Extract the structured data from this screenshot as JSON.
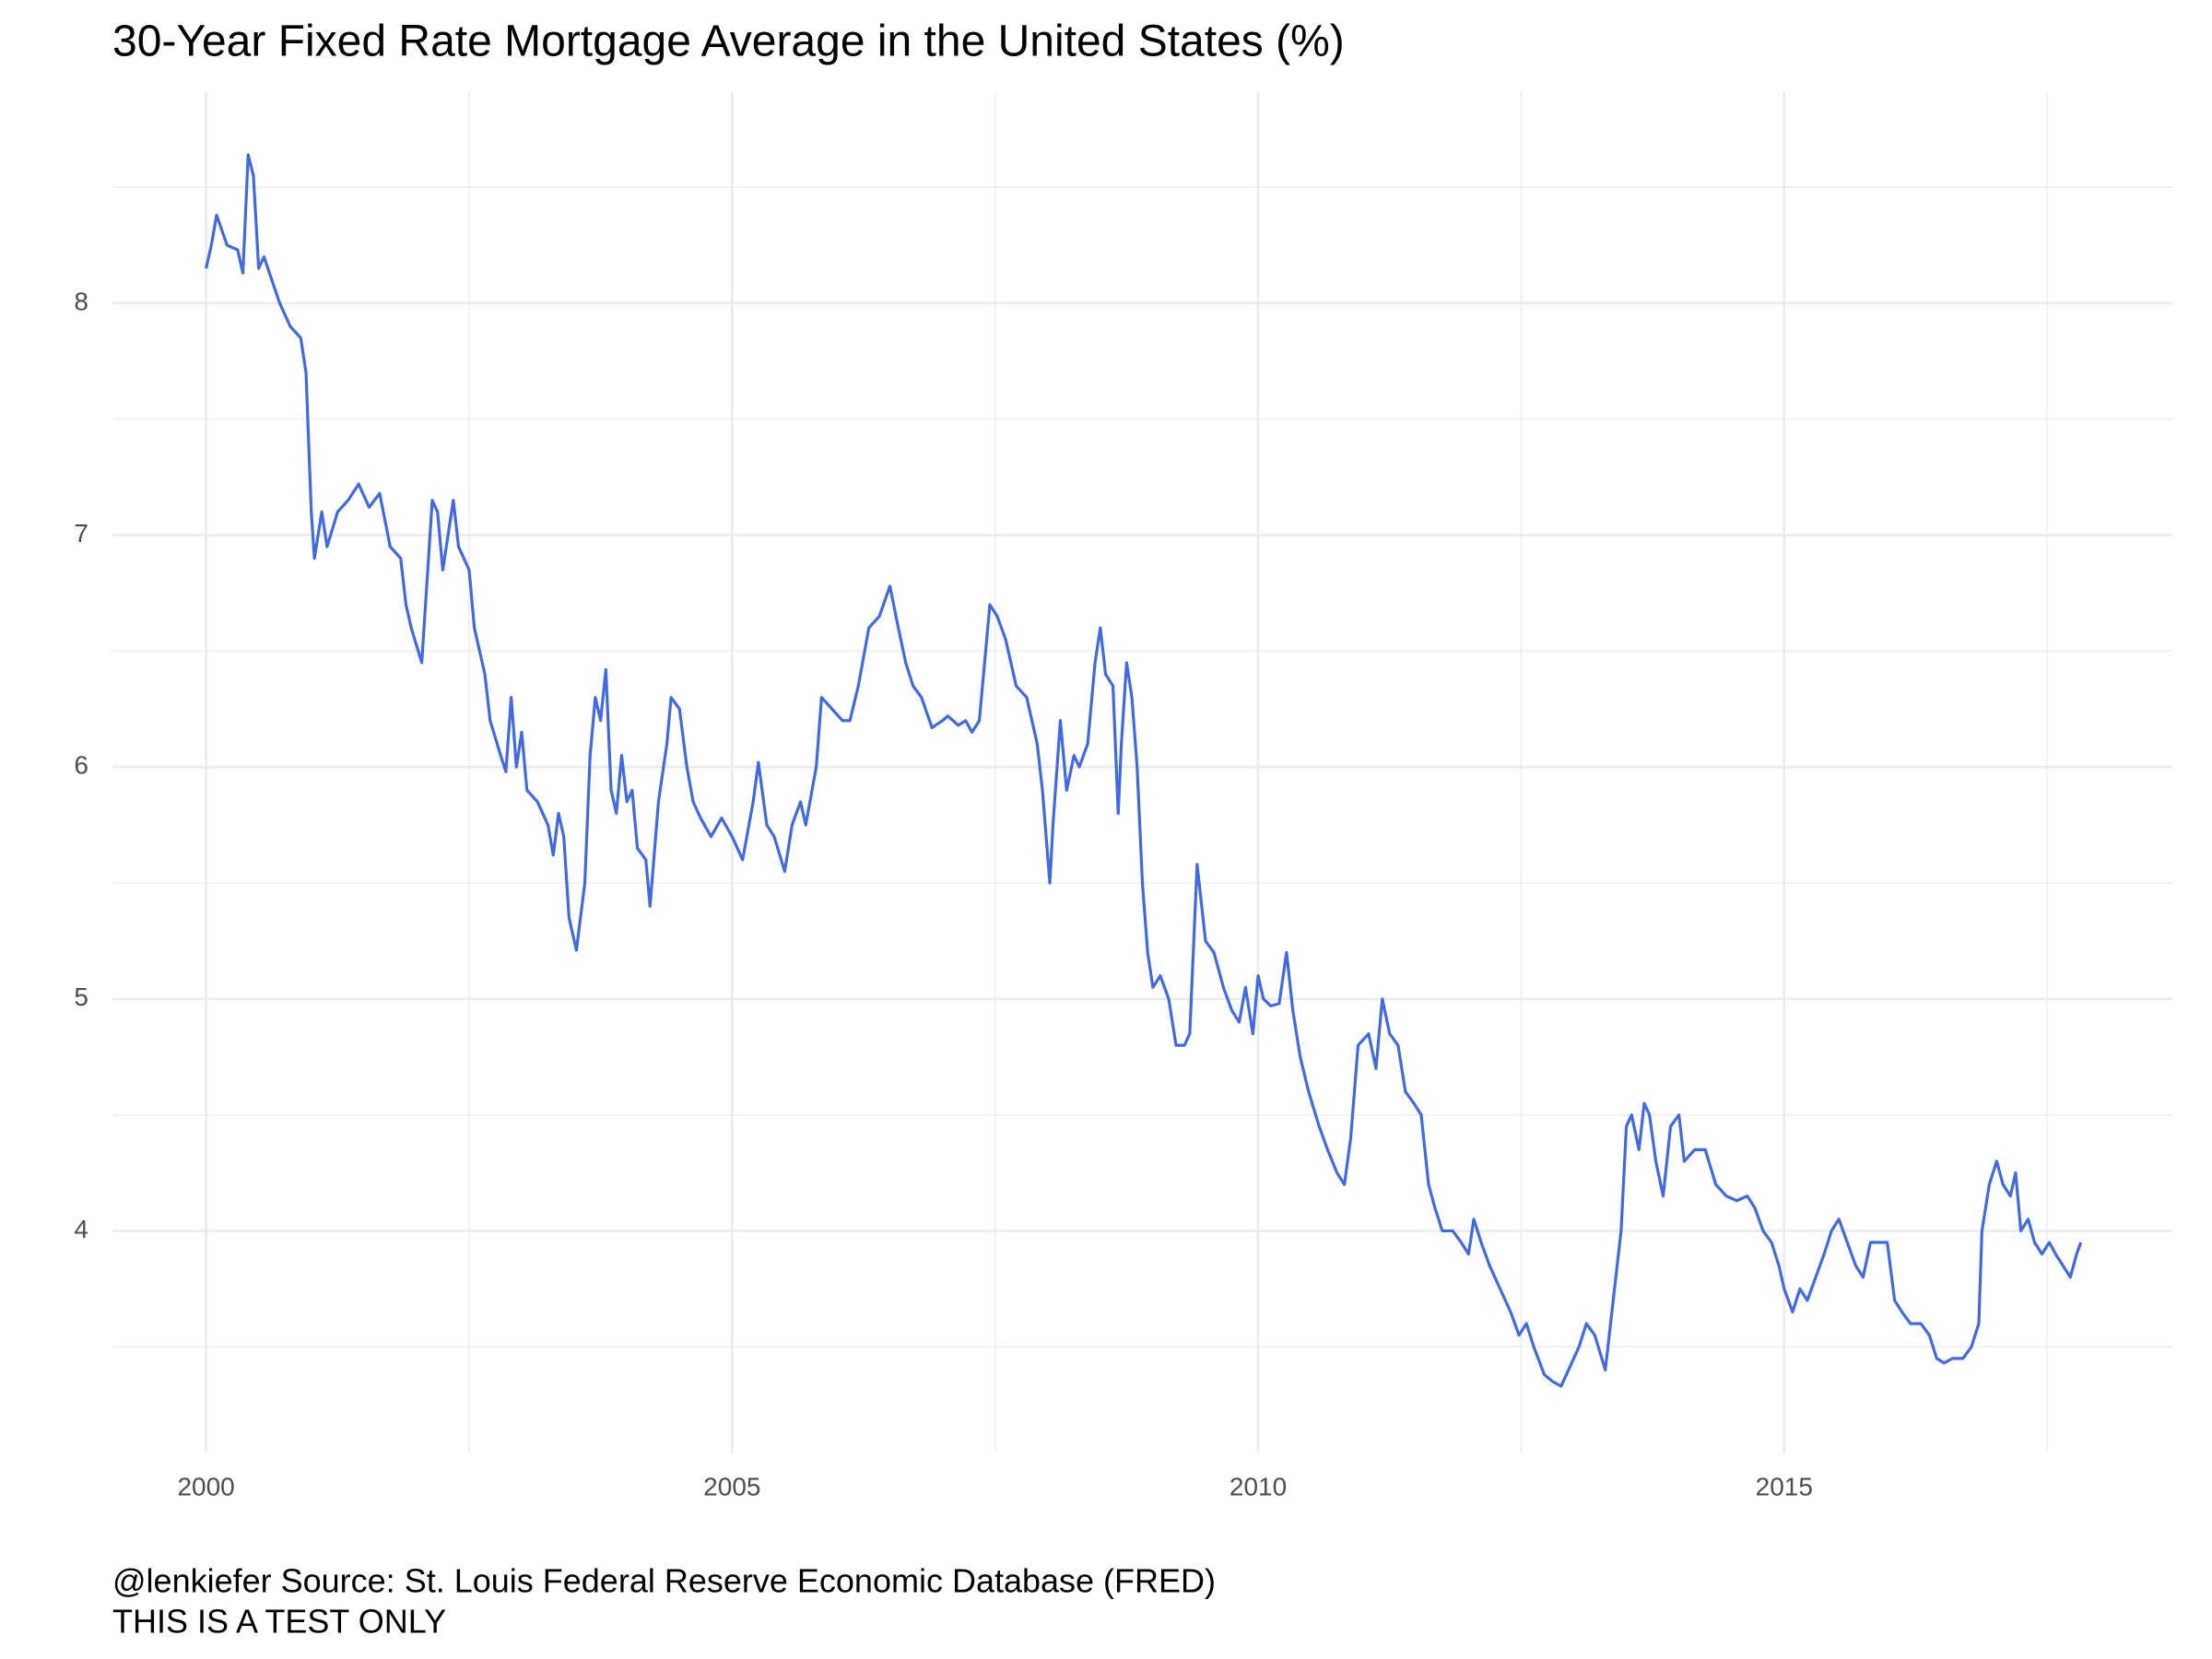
{
  "chart_data": {
    "type": "line",
    "title": "30-Year Fixed Rate Mortgage Average in the United States (%)",
    "caption": [
      "@lenkiefer Source: St. Louis Federal Reserve Economic Database (FRED)",
      "THIS IS A TEST ONLY"
    ],
    "color": "#4169e1",
    "grid": true,
    "xlim": [
      1999.11,
      2018.69
    ],
    "xticks": [
      2000,
      2005,
      2010,
      2015
    ],
    "x_minor_ticks": [
      2002.5,
      2007.5,
      2012.5,
      2017.5
    ],
    "ylim": [
      3.04,
      8.91
    ],
    "yticks": [
      4,
      5,
      6,
      7,
      8
    ],
    "y_minor_ticks": [
      3.5,
      4.5,
      5.5,
      6.5,
      7.5,
      8.5
    ],
    "x": [
      2000.0,
      2000.05,
      2000.1,
      2000.2,
      2000.3,
      2000.35,
      2000.4,
      2000.45,
      2000.5,
      2000.55,
      2000.7,
      2000.8,
      2000.9,
      2000.95,
      2001.0,
      2001.03,
      2001.1,
      2001.15,
      2001.25,
      2001.35,
      2001.45,
      2001.55,
      2001.65,
      2001.75,
      2001.85,
      2001.9,
      2001.95,
      2002.05,
      2002.1,
      2002.15,
      2002.2,
      2002.25,
      2002.3,
      2002.35,
      2002.4,
      2002.5,
      2002.55,
      2002.65,
      2002.7,
      2002.8,
      2002.85,
      2002.9,
      2002.95,
      2003.0,
      2003.05,
      2003.15,
      2003.25,
      2003.3,
      2003.35,
      2003.4,
      2003.45,
      2003.52,
      2003.6,
      2003.65,
      2003.7,
      2003.75,
      2003.8,
      2003.85,
      2003.9,
      2003.95,
      2004.0,
      2004.05,
      2004.1,
      2004.18,
      2004.22,
      2004.3,
      2004.38,
      2004.42,
      2004.5,
      2004.57,
      2004.63,
      2004.7,
      2004.8,
      2004.9,
      2005.0,
      2005.1,
      2005.2,
      2005.25,
      2005.33,
      2005.4,
      2005.5,
      2005.57,
      2005.65,
      2005.7,
      2005.8,
      2005.85,
      2005.95,
      2006.05,
      2006.12,
      2006.2,
      2006.3,
      2006.4,
      2006.5,
      2006.58,
      2006.65,
      2006.72,
      2006.8,
      2006.9,
      2007.0,
      2007.05,
      2007.15,
      2007.22,
      2007.28,
      2007.35,
      2007.45,
      2007.52,
      2007.6,
      2007.7,
      2007.8,
      2007.85,
      2007.9,
      2007.95,
      2008.02,
      2008.05,
      2008.12,
      2008.18,
      2008.25,
      2008.3,
      2008.38,
      2008.45,
      2008.5,
      2008.55,
      2008.62,
      2008.67,
      2008.7,
      2008.75,
      2008.8,
      2008.85,
      2008.9,
      2008.95,
      2009.0,
      2009.07,
      2009.15,
      2009.22,
      2009.3,
      2009.35,
      2009.42,
      2009.5,
      2009.58,
      2009.67,
      2009.75,
      2009.82,
      2009.88,
      2009.95,
      2010.0,
      2010.05,
      2010.12,
      2010.2,
      2010.27,
      2010.33,
      2010.4,
      2010.48,
      2010.58,
      2010.66,
      2010.75,
      2010.82,
      2010.88,
      2010.95,
      2011.05,
      2011.12,
      2011.18,
      2011.25,
      2011.33,
      2011.4,
      2011.48,
      2011.55,
      2011.62,
      2011.68,
      2011.75,
      2011.85,
      2011.93,
      2012.0,
      2012.05,
      2012.12,
      2012.2,
      2012.3,
      2012.4,
      2012.48,
      2012.55,
      2012.62,
      2012.72,
      2012.8,
      2012.88,
      2012.95,
      2013.05,
      2013.12,
      2013.2,
      2013.3,
      2013.35,
      2013.45,
      2013.5,
      2013.55,
      2013.62,
      2013.67,
      2013.72,
      2013.78,
      2013.85,
      2013.92,
      2014.0,
      2014.05,
      2014.15,
      2014.25,
      2014.35,
      2014.45,
      2014.55,
      2014.65,
      2014.72,
      2014.8,
      2014.88,
      2014.95,
      2015.0,
      2015.08,
      2015.15,
      2015.22,
      2015.3,
      2015.38,
      2015.45,
      2015.52,
      2015.6,
      2015.68,
      2015.75,
      2015.82,
      2015.9,
      2015.98,
      2016.05,
      2016.12,
      2016.2,
      2016.3,
      2016.38,
      2016.45,
      2016.52,
      2016.6,
      2016.7,
      2016.78,
      2016.85,
      2016.88,
      2016.95,
      2017.02,
      2017.08,
      2017.15,
      2017.2,
      2017.25,
      2017.32,
      2017.38,
      2017.45,
      2017.52,
      2017.58,
      2017.65,
      2017.72,
      2017.78,
      2017.82
    ],
    "values": [
      8.15,
      8.25,
      8.38,
      8.25,
      8.23,
      8.13,
      8.64,
      8.55,
      8.15,
      8.2,
      8.0,
      7.9,
      7.85,
      7.7,
      7.1,
      6.9,
      7.1,
      6.95,
      7.1,
      7.15,
      7.22,
      7.12,
      7.18,
      6.95,
      6.9,
      6.7,
      6.6,
      6.45,
      6.8,
      7.15,
      7.1,
      6.85,
      7.0,
      7.15,
      6.95,
      6.85,
      6.6,
      6.4,
      6.2,
      6.05,
      5.98,
      6.3,
      6.0,
      6.15,
      5.9,
      5.85,
      5.75,
      5.62,
      5.8,
      5.7,
      5.35,
      5.21,
      5.5,
      6.05,
      6.3,
      6.2,
      6.42,
      5.9,
      5.8,
      6.05,
      5.85,
      5.9,
      5.65,
      5.6,
      5.4,
      5.85,
      6.1,
      6.3,
      6.25,
      6.0,
      5.85,
      5.78,
      5.7,
      5.78,
      5.7,
      5.6,
      5.85,
      6.02,
      5.75,
      5.7,
      5.55,
      5.75,
      5.85,
      5.75,
      6.0,
      6.3,
      6.25,
      6.2,
      6.2,
      6.35,
      6.6,
      6.65,
      6.78,
      6.6,
      6.45,
      6.35,
      6.3,
      6.17,
      6.2,
      6.22,
      6.18,
      6.2,
      6.15,
      6.2,
      6.7,
      6.65,
      6.55,
      6.35,
      6.3,
      6.2,
      6.1,
      5.9,
      5.5,
      5.75,
      6.2,
      5.9,
      6.05,
      6.0,
      6.1,
      6.45,
      6.6,
      6.4,
      6.35,
      5.8,
      6.1,
      6.45,
      6.3,
      6.0,
      5.5,
      5.2,
      5.05,
      5.1,
      5.0,
      4.8,
      4.8,
      4.85,
      5.58,
      5.25,
      5.2,
      5.05,
      4.95,
      4.9,
      5.05,
      4.85,
      5.1,
      5.0,
      4.97,
      4.98,
      5.2,
      4.95,
      4.75,
      4.6,
      4.45,
      4.35,
      4.25,
      4.2,
      4.4,
      4.8,
      4.85,
      4.7,
      5.0,
      4.85,
      4.8,
      4.6,
      4.55,
      4.5,
      4.2,
      4.1,
      4.0,
      4.0,
      3.95,
      3.9,
      4.05,
      3.95,
      3.85,
      3.75,
      3.65,
      3.55,
      3.6,
      3.5,
      3.38,
      3.35,
      3.33,
      3.4,
      3.5,
      3.6,
      3.55,
      3.4,
      3.6,
      4.0,
      4.45,
      4.5,
      4.35,
      4.55,
      4.5,
      4.3,
      4.15,
      4.45,
      4.5,
      4.3,
      4.35,
      4.35,
      4.2,
      4.15,
      4.13,
      4.15,
      4.1,
      4.0,
      3.95,
      3.85,
      3.75,
      3.65,
      3.75,
      3.7,
      3.8,
      3.9,
      4.0,
      4.05,
      3.95,
      3.85,
      3.8,
      3.95,
      3.95,
      3.95,
      3.7,
      3.65,
      3.6,
      3.6,
      3.55,
      3.45,
      3.43,
      3.45,
      3.45,
      3.5,
      3.6,
      4.0,
      4.2,
      4.3,
      4.2,
      4.15,
      4.25,
      4.0,
      4.05,
      3.95,
      3.9,
      3.95,
      3.9,
      3.85,
      3.8,
      3.9,
      3.95
    ]
  }
}
